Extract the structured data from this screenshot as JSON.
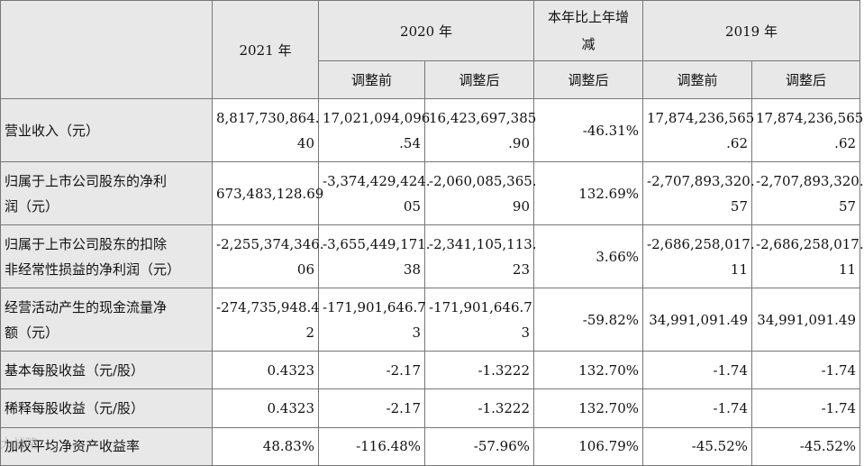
{
  "header": {
    "y2021": "2021 年",
    "y2020": "2020 年",
    "change": [
      "本年比上年增",
      "减"
    ],
    "y2019": "2019 年",
    "before": "调整前",
    "after": "调整后"
  },
  "rows": [
    {
      "label": [
        "营业收入（元）"
      ],
      "c2021": [
        "8,817,730,864.",
        "40"
      ],
      "c2020b": [
        "17,021,094,096",
        ".54"
      ],
      "c2020a": [
        "16,423,697,385",
        ".90"
      ],
      "chg": [
        "-46.31%"
      ],
      "c2019b": [
        "17,874,236,565",
        ".62"
      ],
      "c2019a": [
        "17,874,236,565",
        ".62"
      ]
    },
    {
      "label": [
        "归属于上市公司股东的净利",
        "润（元）"
      ],
      "c2021": [
        "673,483,128.69"
      ],
      "c2020b": [
        "-3,374,429,424.",
        "05"
      ],
      "c2020a": [
        "-2,060,085,365.",
        "90"
      ],
      "chg": [
        "132.69%"
      ],
      "c2019b": [
        "-2,707,893,320.",
        "57"
      ],
      "c2019a": [
        "-2,707,893,320.",
        "57"
      ]
    },
    {
      "label": [
        "归属于上市公司股东的扣除",
        "非经常性损益的净利润（元）"
      ],
      "c2021": [
        "-2,255,374,346.",
        "06"
      ],
      "c2020b": [
        "-3,655,449,171.",
        "38"
      ],
      "c2020a": [
        "-2,341,105,113.",
        "23"
      ],
      "chg": [
        "3.66%"
      ],
      "c2019b": [
        "-2,686,258,017.",
        "11"
      ],
      "c2019a": [
        "-2,686,258,017.",
        "11"
      ]
    },
    {
      "label": [
        "经营活动产生的现金流量净",
        "额（元）"
      ],
      "c2021": [
        "-274,735,948.4",
        "2"
      ],
      "c2020b": [
        "-171,901,646.7",
        "3"
      ],
      "c2020a": [
        "-171,901,646.7",
        "3"
      ],
      "chg": [
        "-59.82%"
      ],
      "c2019b": [
        "34,991,091.49"
      ],
      "c2019a": [
        "34,991,091.49"
      ]
    },
    {
      "label": [
        "基本每股收益（元/股）"
      ],
      "c2021": [
        "0.4323"
      ],
      "c2020b": [
        "-2.17"
      ],
      "c2020a": [
        "-1.3222"
      ],
      "chg": [
        "132.70%"
      ],
      "c2019b": [
        "-1.74"
      ],
      "c2019a": [
        "-1.74"
      ]
    },
    {
      "label": [
        "稀释每股收益（元/股）"
      ],
      "c2021": [
        "0.4323"
      ],
      "c2020b": [
        "-2.17"
      ],
      "c2020a": [
        "-1.3222"
      ],
      "chg": [
        "132.70%"
      ],
      "c2019b": [
        "-1.74"
      ],
      "c2019a": [
        "-1.74"
      ]
    },
    {
      "label": [
        "加权平均净资产收益率"
      ],
      "c2021": [
        "48.83%"
      ],
      "c2020b": [
        "-116.48%"
      ],
      "c2020a": [
        "-57.96%"
      ],
      "chg": [
        "106.79%"
      ],
      "c2019b": [
        "-45.52%"
      ],
      "c2019a": [
        "-45.52%"
      ]
    }
  ],
  "watermark": "大战略"
}
